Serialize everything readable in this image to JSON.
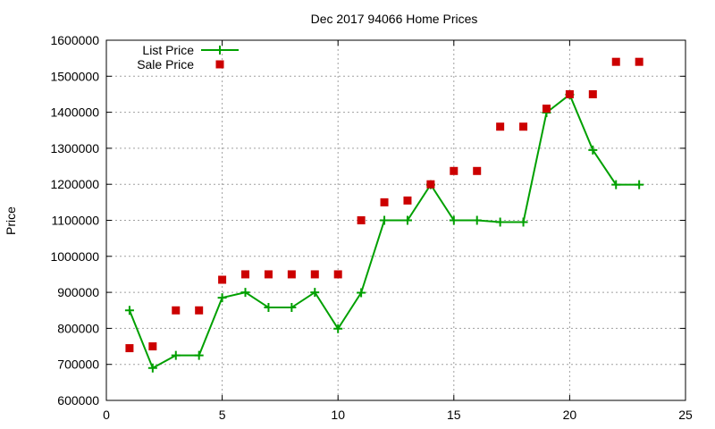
{
  "chart_data": {
    "type": "line",
    "title": "Dec 2017 94066 Home Prices",
    "xlabel": "",
    "ylabel": "Price",
    "xlim": [
      0,
      25
    ],
    "ylim": [
      600000,
      1600000
    ],
    "x_ticks": [
      0,
      5,
      10,
      15,
      20,
      25
    ],
    "y_ticks": [
      600000,
      700000,
      800000,
      900000,
      1000000,
      1100000,
      1200000,
      1300000,
      1400000,
      1500000,
      1600000
    ],
    "grid": true,
    "legend_position": "top-left",
    "x": [
      1,
      2,
      3,
      4,
      5,
      6,
      7,
      8,
      9,
      10,
      11,
      12,
      13,
      14,
      15,
      16,
      17,
      18,
      19,
      20,
      21,
      22,
      23
    ],
    "series": [
      {
        "name": "List Price",
        "style": "linespoints",
        "color": "#00a000",
        "values": [
          850000,
          690000,
          725000,
          725000,
          885000,
          900000,
          858000,
          858000,
          900000,
          799000,
          899000,
          1100000,
          1100000,
          1199000,
          1100000,
          1100000,
          1095000,
          1095000,
          1399000,
          1449000,
          1295000,
          1199000,
          1199000
        ]
      },
      {
        "name": "Sale Price",
        "style": "points",
        "color": "#cc0000",
        "values": [
          745000,
          750000,
          850000,
          850000,
          935000,
          950000,
          950000,
          950000,
          950000,
          950000,
          1100000,
          1150000,
          1155000,
          1200000,
          1237000,
          1237000,
          1360000,
          1360000,
          1410000,
          1450000,
          1450000,
          1540000,
          1540000
        ]
      }
    ]
  }
}
